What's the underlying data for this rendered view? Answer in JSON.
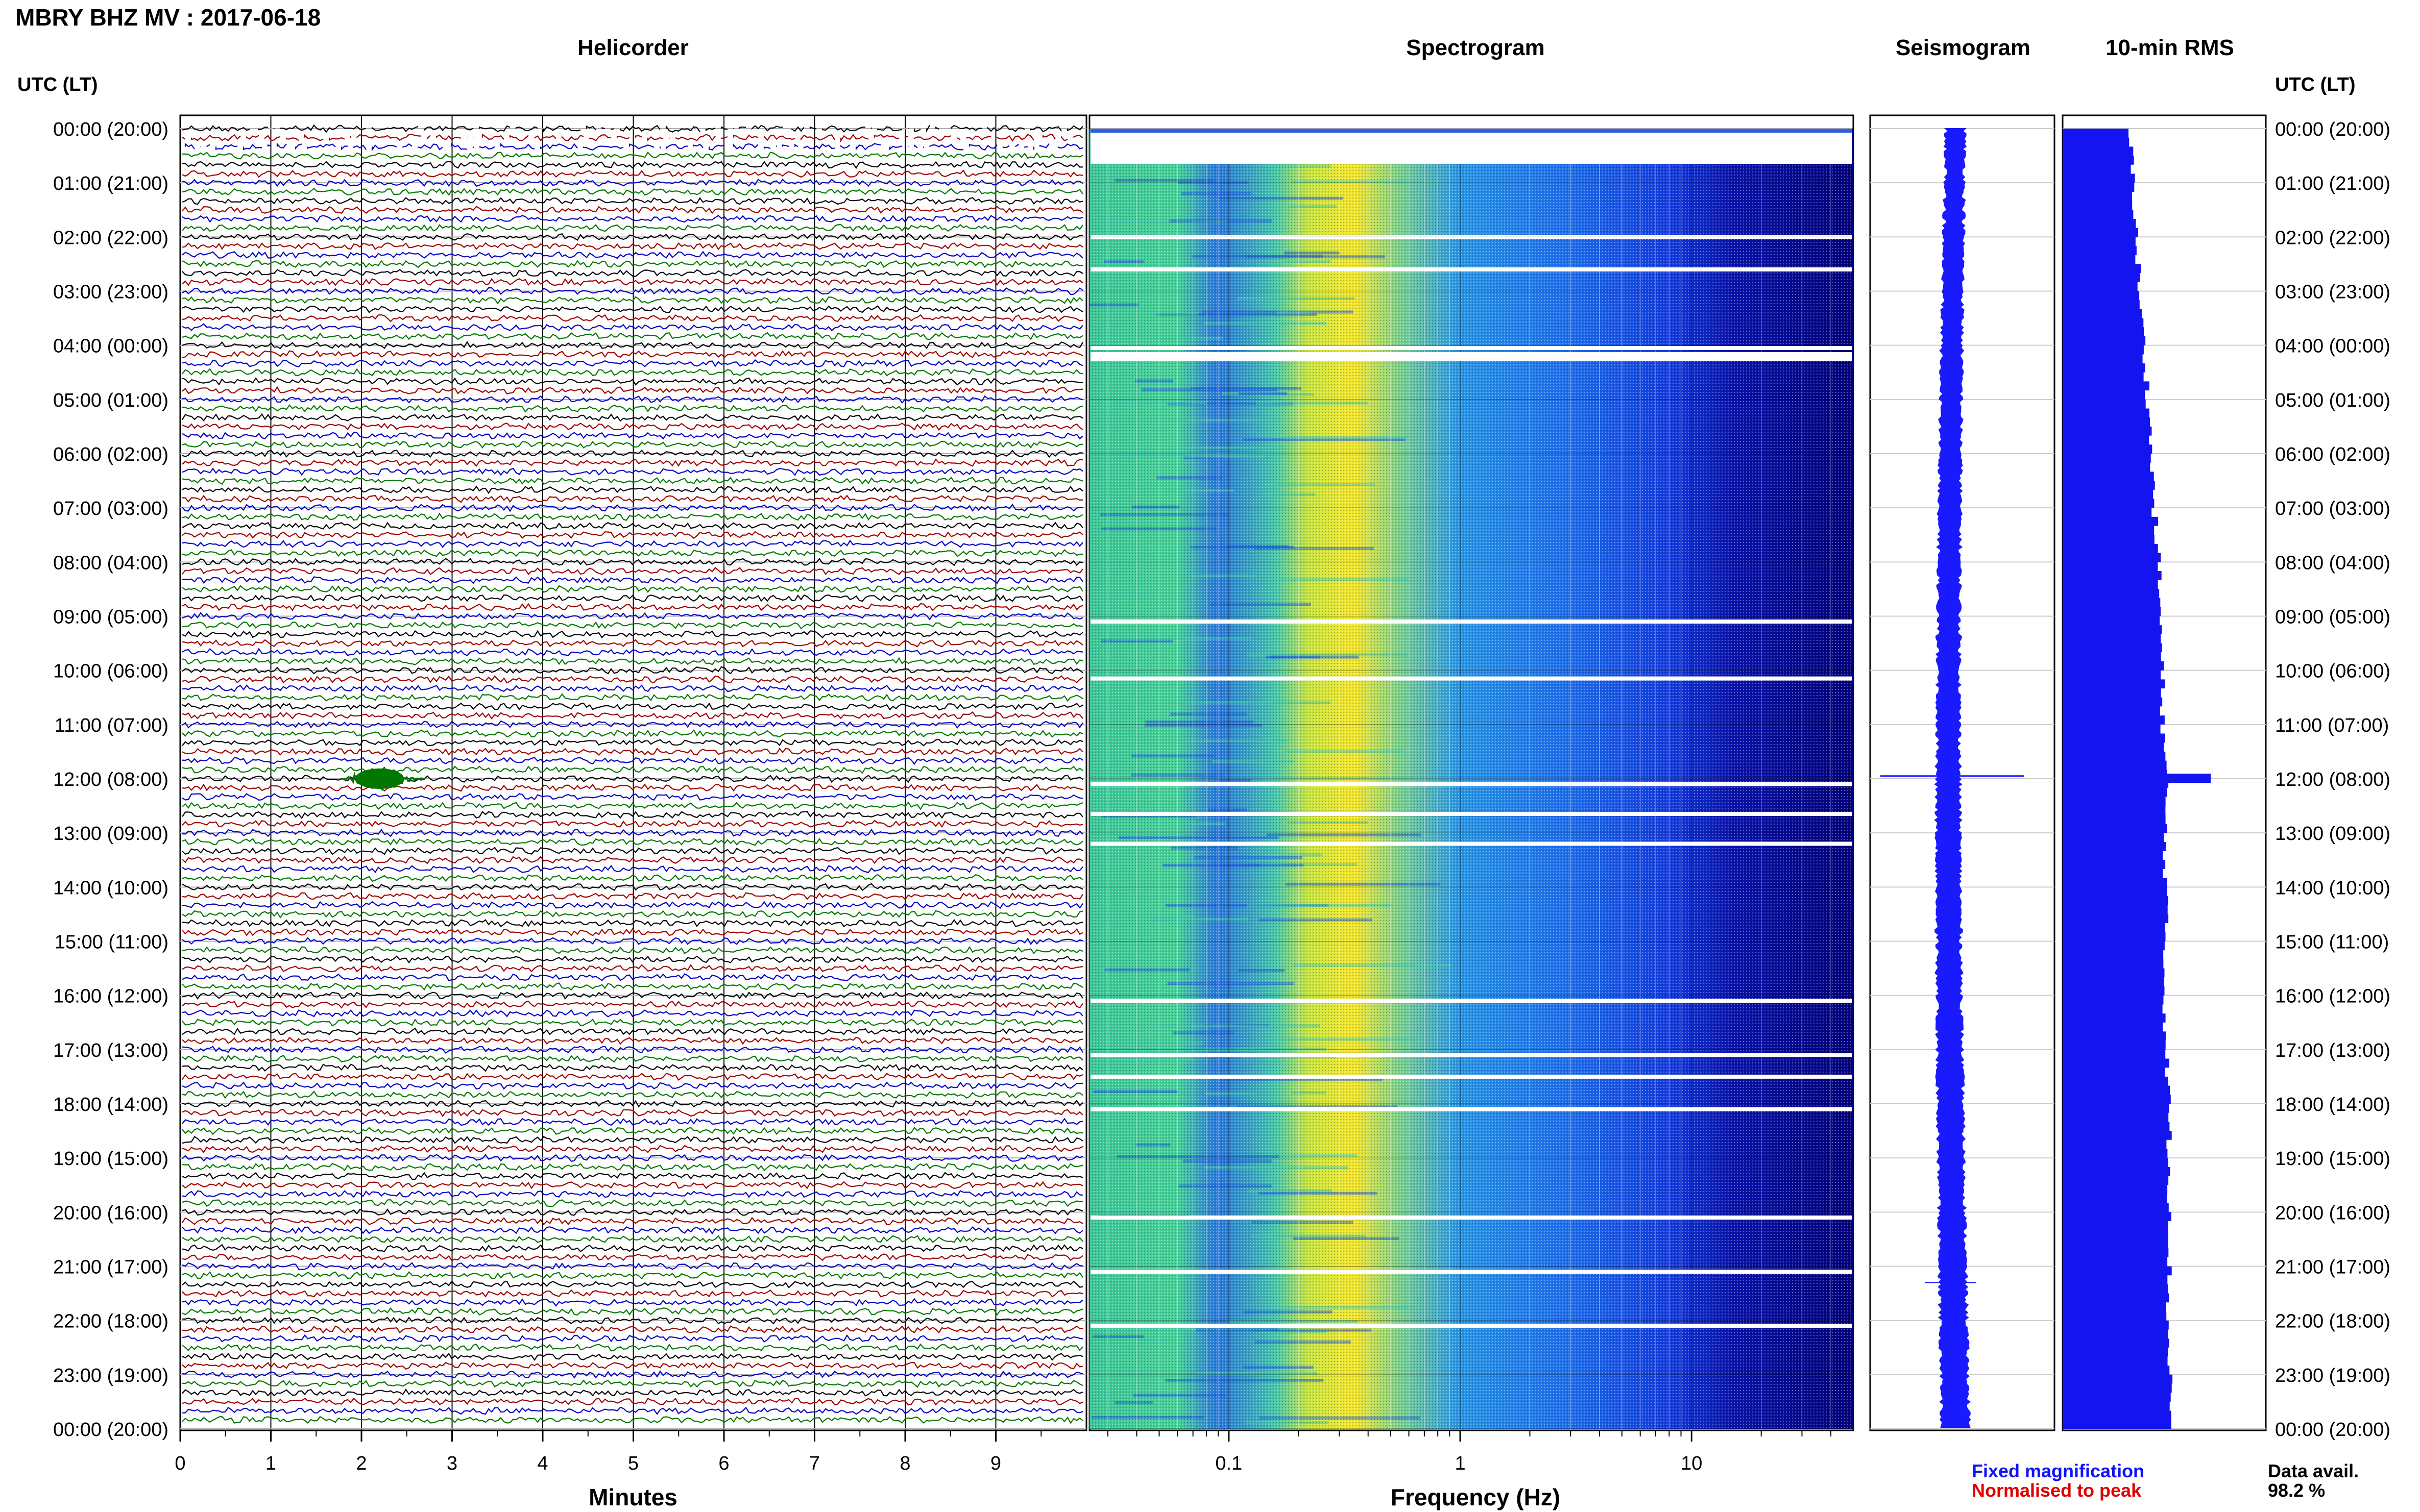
{
  "header": {
    "title": "MBRY BHZ MV : 2017-06-18",
    "time_header_left": "UTC (LT)",
    "time_header_right": "UTC (LT)"
  },
  "panels": {
    "helicorder": "Helicorder",
    "spectrogram": "Spectrogram",
    "seismogram": "Seismogram",
    "rms": "10-min RMS"
  },
  "axes": {
    "minutes_label": "Minutes",
    "minutes_ticks": [
      "0",
      "1",
      "2",
      "3",
      "4",
      "5",
      "6",
      "7",
      "8",
      "9"
    ],
    "frequency_label": "Frequency (Hz)",
    "frequency_ticks": [
      "0.1",
      "1",
      "10"
    ]
  },
  "legend": {
    "fixed": "Fixed magnification",
    "normalised": "Normalised to peak"
  },
  "availability": {
    "label": "Data avail.",
    "value": "98.2 %"
  },
  "colors": {
    "trace_black": "#000000",
    "trace_blue": "#0000c8",
    "trace_red": "#a00000",
    "trace_green": "#007800",
    "fixed_text": "#1010ff",
    "normalised_text": "#e00000",
    "seismo_blue": "#1a1aff",
    "rms_blue": "#1414f0",
    "spec_dark": "#00008b"
  },
  "chart_data": {
    "type": "heatmap",
    "time_labels": [
      "00:00 (20:00)",
      "01:00 (21:00)",
      "02:00 (22:00)",
      "03:00 (23:00)",
      "04:00 (00:00)",
      "05:00 (01:00)",
      "06:00 (02:00)",
      "07:00 (03:00)",
      "08:00 (04:00)",
      "09:00 (05:00)",
      "10:00 (06:00)",
      "11:00 (07:00)",
      "12:00 (08:00)",
      "13:00 (09:00)",
      "14:00 (10:00)",
      "15:00 (11:00)",
      "16:00 (12:00)",
      "17:00 (13:00)",
      "18:00 (14:00)",
      "19:00 (15:00)",
      "20:00 (16:00)",
      "21:00 (17:00)",
      "22:00 (18:00)",
      "23:00 (19:00)",
      "00:00 (20:00)"
    ],
    "helicorder": {
      "lines_per_hour": 6,
      "minutes_per_line": 10,
      "event_hour": 12.0,
      "event_minute": 2.2
    },
    "spectrogram": {
      "freq_range_hz": [
        0.025,
        50
      ],
      "log_scale": true,
      "peak_band_hz": [
        0.25,
        0.5
      ],
      "gap_hours": [
        0.3,
        2.0,
        2.6,
        4.05,
        4.25,
        9.1,
        10.15,
        12.1,
        12.65,
        13.2,
        16.1,
        17.1,
        17.5,
        18.1,
        20.1,
        21.1,
        22.1
      ]
    },
    "seismogram": {
      "event_hours": [
        11.95,
        21.3
      ]
    },
    "rms": {
      "unit": "relative",
      "hourly": [
        0.45,
        0.48,
        0.5,
        0.52,
        0.55,
        0.58,
        0.6,
        0.62,
        0.65,
        0.66,
        0.67,
        0.68,
        0.7,
        0.69,
        0.7,
        0.69,
        0.69,
        0.7,
        0.72,
        0.72,
        0.73,
        0.72,
        0.71,
        0.73,
        0.73
      ],
      "peak_hour": 12.0,
      "peak_value": 1.0
    }
  }
}
